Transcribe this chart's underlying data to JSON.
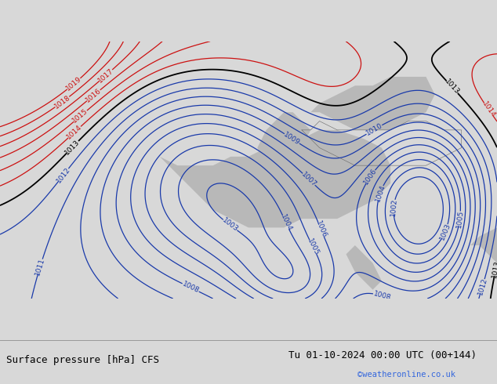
{
  "title_left": "Surface pressure [hPa] CFS",
  "title_right": "Tu 01-10-2024 00:00 UTC (00+144)",
  "credit": "©weatheronline.co.uk",
  "bg_color": "#9ecc6e",
  "sea_color": "#b8b8b8",
  "bottom_bar_color": "#d8d8d8",
  "isobar_blue_color": "#1a3aaa",
  "isobar_red_color": "#cc1111",
  "isobar_black_color": "#000000",
  "label_fontsize": 6.5,
  "contour_linewidth": 0.9,
  "title_fontsize": 9,
  "credit_fontsize": 7.5,
  "credit_color": "#3366dd"
}
